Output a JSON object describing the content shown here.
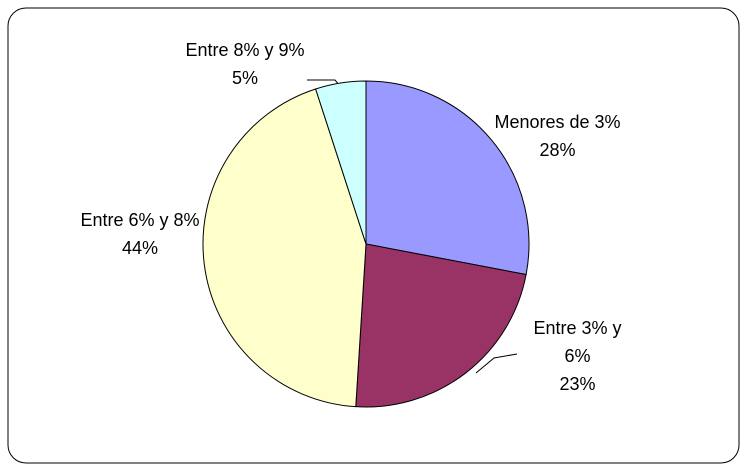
{
  "chart_data": {
    "type": "pie",
    "categories": [
      "Menores de 3%",
      "Entre 3% y 6%",
      "Entre 6% y 8%",
      "Entre 8% y 9%"
    ],
    "values": [
      28,
      23,
      44,
      5
    ],
    "value_labels": [
      "28%",
      "23%",
      "44%",
      "5%"
    ],
    "colors": [
      "#9999ff",
      "#993366",
      "#ffffcc",
      "#ccffff"
    ]
  }
}
